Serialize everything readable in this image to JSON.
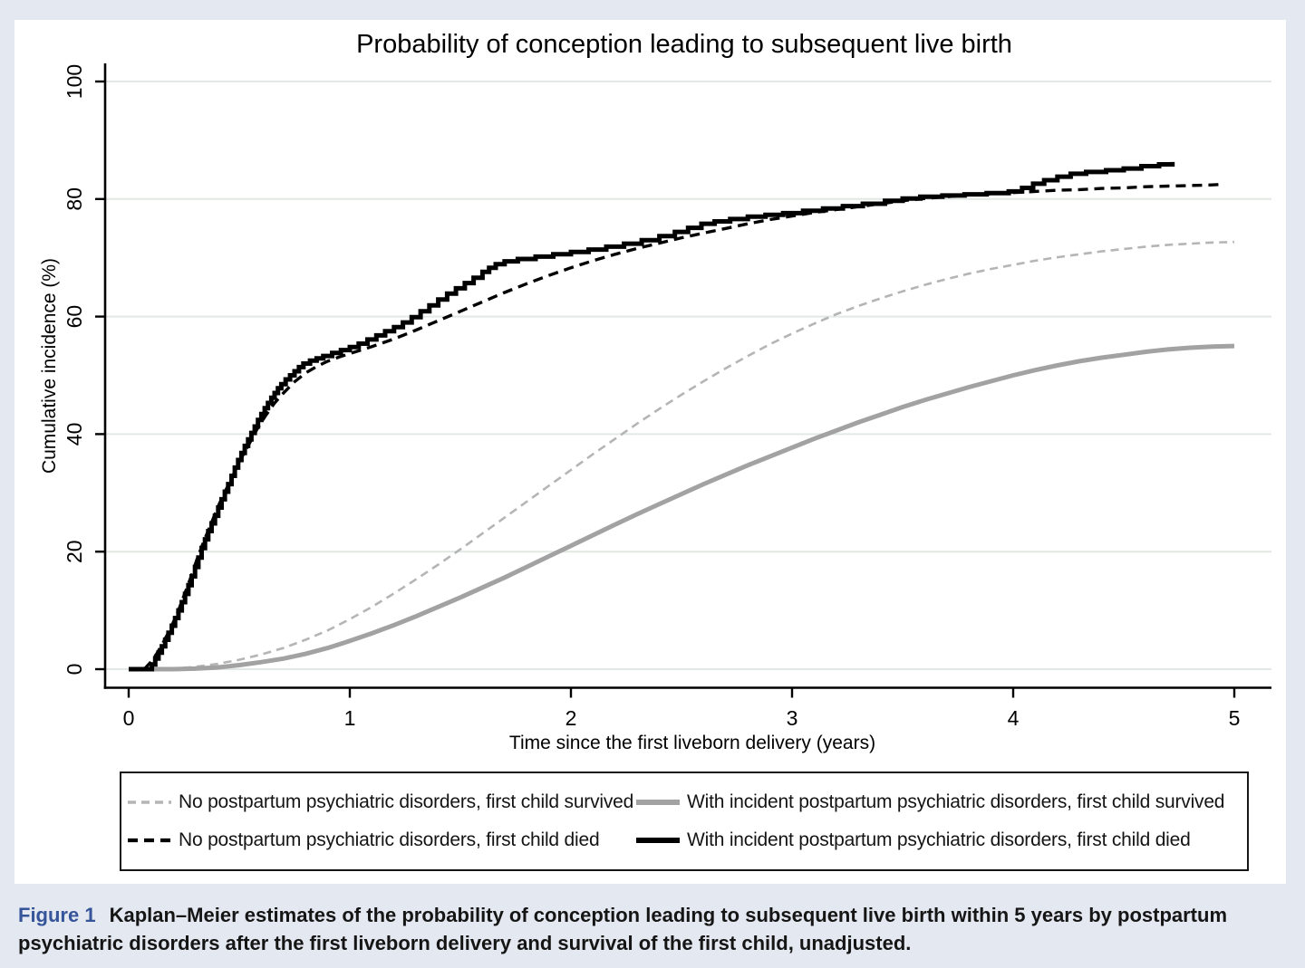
{
  "colors": {
    "page_bg": "#e4e8f0",
    "card_bg": "#ffffff",
    "grid": "#e2e9e4",
    "axis": "#000000",
    "caption_label": "#35549a"
  },
  "chart_data": {
    "type": "line",
    "title": "Probability of conception leading to subsequent live birth",
    "xlabel": "Time since the first liveborn delivery (years)",
    "ylabel": "Cumulative incidence (%)",
    "xlim": [
      0,
      5
    ],
    "ylim": [
      0,
      100
    ],
    "xticks": [
      0,
      1,
      2,
      3,
      4,
      5
    ],
    "yticks": [
      0,
      20,
      40,
      60,
      80,
      100
    ],
    "grid": "horizontal",
    "legend_position": "bottom box, two columns",
    "series": [
      {
        "name": "No postpartum psychiatric disorders, first child survived",
        "color": "#b5b5b5",
        "width": 2.6,
        "dash": "9 6",
        "interp": "linear",
        "points": [
          [
            0,
            0
          ],
          [
            0.1,
            0
          ],
          [
            0.2,
            0.1
          ],
          [
            0.3,
            0.4
          ],
          [
            0.4,
            0.9
          ],
          [
            0.5,
            1.6
          ],
          [
            0.6,
            2.5
          ],
          [
            0.7,
            3.6
          ],
          [
            0.8,
            5.0
          ],
          [
            0.9,
            6.6
          ],
          [
            1.0,
            8.5
          ],
          [
            1.1,
            10.6
          ],
          [
            1.2,
            12.9
          ],
          [
            1.3,
            15.3
          ],
          [
            1.4,
            17.8
          ],
          [
            1.5,
            20.4
          ],
          [
            1.6,
            23.1
          ],
          [
            1.7,
            25.8
          ],
          [
            1.8,
            28.5
          ],
          [
            1.9,
            31.2
          ],
          [
            2.0,
            33.9
          ],
          [
            2.1,
            36.6
          ],
          [
            2.2,
            39.2
          ],
          [
            2.3,
            41.8
          ],
          [
            2.4,
            44.3
          ],
          [
            2.5,
            46.7
          ],
          [
            2.6,
            49.0
          ],
          [
            2.7,
            51.2
          ],
          [
            2.8,
            53.3
          ],
          [
            2.9,
            55.3
          ],
          [
            3.0,
            57.1
          ],
          [
            3.1,
            58.8
          ],
          [
            3.2,
            60.4
          ],
          [
            3.3,
            61.8
          ],
          [
            3.4,
            63.1
          ],
          [
            3.5,
            64.3
          ],
          [
            3.6,
            65.4
          ],
          [
            3.7,
            66.4
          ],
          [
            3.8,
            67.3
          ],
          [
            3.9,
            68.1
          ],
          [
            4.0,
            68.8
          ],
          [
            4.1,
            69.5
          ],
          [
            4.2,
            70.1
          ],
          [
            4.3,
            70.6
          ],
          [
            4.4,
            71.1
          ],
          [
            4.5,
            71.5
          ],
          [
            4.6,
            71.9
          ],
          [
            4.7,
            72.2
          ],
          [
            4.8,
            72.4
          ],
          [
            4.9,
            72.6
          ],
          [
            5.0,
            72.7
          ]
        ]
      },
      {
        "name": "With incident postpartum psychiatric disorders, first child survived",
        "color": "#a2a2a2",
        "width": 5,
        "dash": null,
        "interp": "linear",
        "points": [
          [
            0,
            0
          ],
          [
            0.1,
            0
          ],
          [
            0.2,
            0
          ],
          [
            0.3,
            0.1
          ],
          [
            0.4,
            0.3
          ],
          [
            0.5,
            0.7
          ],
          [
            0.6,
            1.2
          ],
          [
            0.7,
            1.8
          ],
          [
            0.8,
            2.6
          ],
          [
            0.9,
            3.6
          ],
          [
            1.0,
            4.8
          ],
          [
            1.1,
            6.1
          ],
          [
            1.2,
            7.5
          ],
          [
            1.3,
            9.0
          ],
          [
            1.4,
            10.6
          ],
          [
            1.5,
            12.2
          ],
          [
            1.6,
            13.9
          ],
          [
            1.7,
            15.6
          ],
          [
            1.8,
            17.4
          ],
          [
            1.9,
            19.2
          ],
          [
            2.0,
            21.0
          ],
          [
            2.1,
            22.8
          ],
          [
            2.2,
            24.6
          ],
          [
            2.3,
            26.4
          ],
          [
            2.4,
            28.1
          ],
          [
            2.5,
            29.8
          ],
          [
            2.6,
            31.5
          ],
          [
            2.7,
            33.1
          ],
          [
            2.8,
            34.7
          ],
          [
            2.9,
            36.2
          ],
          [
            3.0,
            37.7
          ],
          [
            3.1,
            39.2
          ],
          [
            3.2,
            40.6
          ],
          [
            3.3,
            42.0
          ],
          [
            3.4,
            43.3
          ],
          [
            3.5,
            44.6
          ],
          [
            3.6,
            45.8
          ],
          [
            3.7,
            46.9
          ],
          [
            3.8,
            48.0
          ],
          [
            3.9,
            49.0
          ],
          [
            4.0,
            50.0
          ],
          [
            4.1,
            50.9
          ],
          [
            4.2,
            51.7
          ],
          [
            4.3,
            52.4
          ],
          [
            4.4,
            53.0
          ],
          [
            4.5,
            53.5
          ],
          [
            4.6,
            54.0
          ],
          [
            4.7,
            54.4
          ],
          [
            4.8,
            54.7
          ],
          [
            4.9,
            54.9
          ],
          [
            5.0,
            55.0
          ]
        ]
      },
      {
        "name": "No postpartum psychiatric disorders, first child died",
        "color": "#000000",
        "width": 3.4,
        "dash": "11 7",
        "interp": "linear",
        "points": [
          [
            0.07,
            0
          ],
          [
            0.1,
            1.2
          ],
          [
            0.13,
            2.8
          ],
          [
            0.16,
            4.8
          ],
          [
            0.19,
            7.0
          ],
          [
            0.22,
            9.5
          ],
          [
            0.25,
            12.5
          ],
          [
            0.28,
            15.5
          ],
          [
            0.31,
            18.8
          ],
          [
            0.34,
            21.8
          ],
          [
            0.37,
            24.5
          ],
          [
            0.4,
            27.3
          ],
          [
            0.43,
            29.8
          ],
          [
            0.46,
            32.0
          ],
          [
            0.5,
            35.3
          ],
          [
            0.54,
            38.0
          ],
          [
            0.58,
            40.8
          ],
          [
            0.62,
            43.2
          ],
          [
            0.66,
            45.3
          ],
          [
            0.7,
            47.0
          ],
          [
            0.75,
            48.9
          ],
          [
            0.8,
            50.4
          ],
          [
            0.85,
            51.5
          ],
          [
            0.9,
            52.4
          ],
          [
            0.95,
            53.1
          ],
          [
            1.0,
            53.7
          ],
          [
            1.1,
            54.9
          ],
          [
            1.2,
            56.2
          ],
          [
            1.3,
            57.7
          ],
          [
            1.4,
            59.3
          ],
          [
            1.5,
            60.9
          ],
          [
            1.6,
            62.5
          ],
          [
            1.7,
            64.1
          ],
          [
            1.8,
            65.6
          ],
          [
            1.9,
            67.0
          ],
          [
            2.0,
            68.3
          ],
          [
            2.1,
            69.5
          ],
          [
            2.2,
            70.6
          ],
          [
            2.3,
            71.6
          ],
          [
            2.4,
            72.5
          ],
          [
            2.5,
            73.4
          ],
          [
            2.6,
            74.2
          ],
          [
            2.7,
            75.0
          ],
          [
            2.8,
            75.8
          ],
          [
            2.9,
            76.5
          ],
          [
            3.0,
            77.1
          ],
          [
            3.1,
            77.7
          ],
          [
            3.2,
            78.2
          ],
          [
            3.3,
            78.7
          ],
          [
            3.4,
            79.2
          ],
          [
            3.5,
            79.7
          ],
          [
            3.6,
            80.1
          ],
          [
            3.7,
            80.4
          ],
          [
            3.8,
            80.7
          ],
          [
            3.9,
            80.9
          ],
          [
            4.0,
            81.1
          ],
          [
            4.1,
            81.3
          ],
          [
            4.2,
            81.5
          ],
          [
            4.3,
            81.6
          ],
          [
            4.4,
            81.8
          ],
          [
            4.5,
            81.9
          ],
          [
            4.6,
            82.1
          ],
          [
            4.7,
            82.2
          ],
          [
            4.8,
            82.3
          ],
          [
            4.9,
            82.4
          ],
          [
            4.95,
            82.5
          ]
        ]
      },
      {
        "name": "With incident postpartum psychiatric disorders, first child died",
        "color": "#000000",
        "width": 5,
        "dash": null,
        "interp": "step",
        "points": [
          [
            0,
            0
          ],
          [
            0.09,
            0
          ],
          [
            0.105,
            0.8
          ],
          [
            0.12,
            1.8
          ],
          [
            0.135,
            2.8
          ],
          [
            0.15,
            3.9
          ],
          [
            0.165,
            5.0
          ],
          [
            0.18,
            6.2
          ],
          [
            0.195,
            7.4
          ],
          [
            0.21,
            8.7
          ],
          [
            0.225,
            10.0
          ],
          [
            0.24,
            11.4
          ],
          [
            0.255,
            12.8
          ],
          [
            0.27,
            14.3
          ],
          [
            0.285,
            15.8
          ],
          [
            0.3,
            17.4
          ],
          [
            0.315,
            19.0
          ],
          [
            0.33,
            20.6
          ],
          [
            0.345,
            22.1
          ],
          [
            0.36,
            23.5
          ],
          [
            0.375,
            24.8
          ],
          [
            0.39,
            26.1
          ],
          [
            0.405,
            27.5
          ],
          [
            0.42,
            28.9
          ],
          [
            0.435,
            30.2
          ],
          [
            0.45,
            31.5
          ],
          [
            0.465,
            32.9
          ],
          [
            0.48,
            34.3
          ],
          [
            0.495,
            35.6
          ],
          [
            0.51,
            36.8
          ],
          [
            0.525,
            38.0
          ],
          [
            0.54,
            39.1
          ],
          [
            0.555,
            40.2
          ],
          [
            0.57,
            41.3
          ],
          [
            0.585,
            42.4
          ],
          [
            0.6,
            43.4
          ],
          [
            0.615,
            44.4
          ],
          [
            0.63,
            45.3
          ],
          [
            0.645,
            46.2
          ],
          [
            0.66,
            47.0
          ],
          [
            0.675,
            47.8
          ],
          [
            0.69,
            48.5
          ],
          [
            0.71,
            49.3
          ],
          [
            0.73,
            50.0
          ],
          [
            0.75,
            50.7
          ],
          [
            0.77,
            51.4
          ],
          [
            0.79,
            52.0
          ],
          [
            0.82,
            52.5
          ],
          [
            0.85,
            52.9
          ],
          [
            0.88,
            53.3
          ],
          [
            0.92,
            53.8
          ],
          [
            0.96,
            54.3
          ],
          [
            1.0,
            54.8
          ],
          [
            1.04,
            55.4
          ],
          [
            1.08,
            56.1
          ],
          [
            1.12,
            56.8
          ],
          [
            1.16,
            57.5
          ],
          [
            1.2,
            58.2
          ],
          [
            1.24,
            59.0
          ],
          [
            1.28,
            59.9
          ],
          [
            1.32,
            60.9
          ],
          [
            1.36,
            61.9
          ],
          [
            1.4,
            62.9
          ],
          [
            1.44,
            63.9
          ],
          [
            1.48,
            64.8
          ],
          [
            1.52,
            65.7
          ],
          [
            1.56,
            66.6
          ],
          [
            1.6,
            67.6
          ],
          [
            1.63,
            68.3
          ],
          [
            1.66,
            68.9
          ],
          [
            1.7,
            69.4
          ],
          [
            1.76,
            69.8
          ],
          [
            1.84,
            70.2
          ],
          [
            1.92,
            70.6
          ],
          [
            2.0,
            71.0
          ],
          [
            2.08,
            71.4
          ],
          [
            2.16,
            71.9
          ],
          [
            2.24,
            72.4
          ],
          [
            2.32,
            73.0
          ],
          [
            2.4,
            73.7
          ],
          [
            2.47,
            74.4
          ],
          [
            2.53,
            75.1
          ],
          [
            2.59,
            75.8
          ],
          [
            2.65,
            76.2
          ],
          [
            2.72,
            76.6
          ],
          [
            2.8,
            77.0
          ],
          [
            2.88,
            77.3
          ],
          [
            2.96,
            77.6
          ],
          [
            3.05,
            78.0
          ],
          [
            3.14,
            78.4
          ],
          [
            3.23,
            78.8
          ],
          [
            3.32,
            79.2
          ],
          [
            3.42,
            79.7
          ],
          [
            3.5,
            80.1
          ],
          [
            3.58,
            80.4
          ],
          [
            3.68,
            80.6
          ],
          [
            3.78,
            80.8
          ],
          [
            3.88,
            81.0
          ],
          [
            3.98,
            81.3
          ],
          [
            4.04,
            81.9
          ],
          [
            4.09,
            82.6
          ],
          [
            4.14,
            83.2
          ],
          [
            4.2,
            83.8
          ],
          [
            4.26,
            84.3
          ],
          [
            4.33,
            84.6
          ],
          [
            4.42,
            84.9
          ],
          [
            4.5,
            85.2
          ],
          [
            4.58,
            85.6
          ],
          [
            4.66,
            85.9
          ],
          [
            4.72,
            86.3
          ]
        ]
      }
    ]
  },
  "caption": {
    "label": "Figure 1",
    "text": "Kaplan–Meier estimates of the probability of conception leading to subsequent live birth within 5 years by postpartum psychiatric disorders after the first liveborn delivery and survival of the first child, unadjusted."
  }
}
